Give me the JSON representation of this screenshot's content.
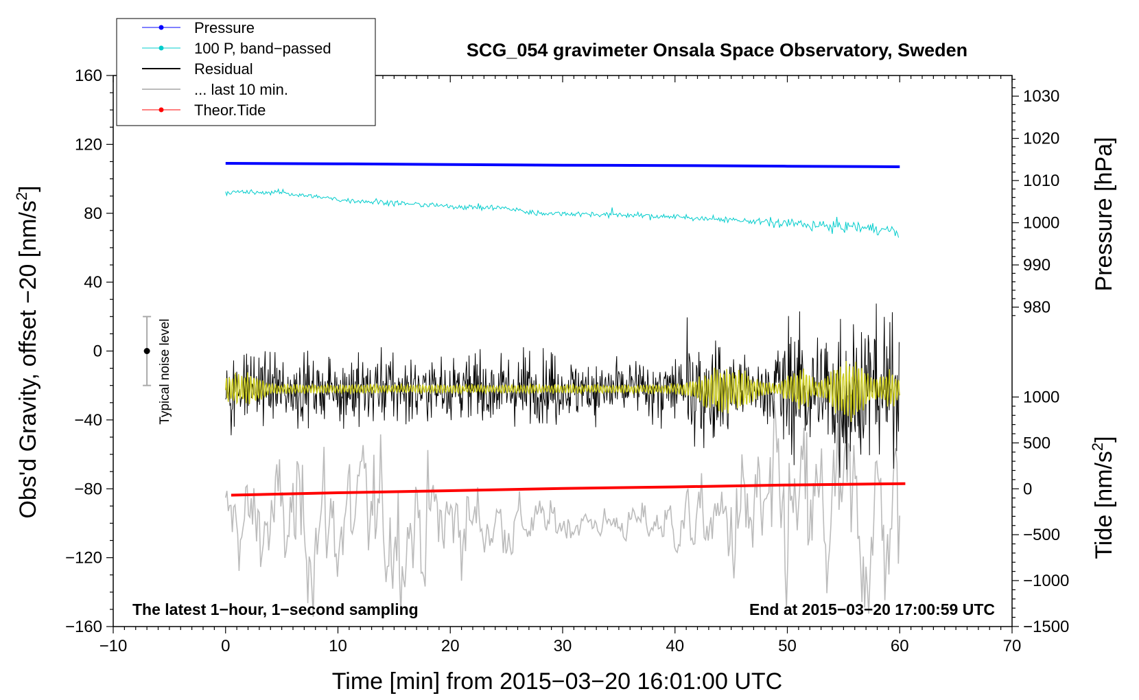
{
  "chart_data": {
    "type": "line",
    "title": "SCG_054 gravimeter Onsala Space Observatory, Sweden",
    "xlabel": "Time [min] from 2015−03−20 16:01:00 UTC",
    "ylabel_main": "Obs'd Gravity, offset −20 [nm/s",
    "ylabel_sup": "2",
    "ylabel_close": "]",
    "xlim": [
      -10,
      70
    ],
    "ylim": [
      -160,
      160
    ],
    "x_ticks": [
      -10,
      0,
      10,
      20,
      30,
      40,
      50,
      60,
      70
    ],
    "x_tick_labels": [
      "−10",
      "0",
      "10",
      "20",
      "30",
      "40",
      "50",
      "60",
      "70"
    ],
    "y_ticks": [
      160,
      120,
      80,
      40,
      0,
      -40,
      -80,
      -120,
      -160
    ],
    "y_tick_labels": [
      "160",
      "120",
      "80",
      "40",
      "0",
      "−40",
      "−80",
      "−120",
      "−160"
    ],
    "pressure_axis": {
      "label": "Pressure [hPa]",
      "ticks": [
        1030,
        1020,
        1010,
        1000,
        990,
        980
      ],
      "tick_labels": [
        "1030",
        "1020",
        "1010",
        "1000",
        "990",
        "980"
      ],
      "gravity_at_1030": 148,
      "nm_per_hpa": 2.45
    },
    "tide_axis": {
      "label_main": "Tide [nm/s",
      "label_sup": "2",
      "label_close": "]",
      "ticks": [
        1000,
        500,
        0,
        -500,
        -1000,
        -1500
      ],
      "tick_labels": [
        "1000",
        "500",
        "0",
        "−500",
        "−1000",
        "−1500"
      ],
      "gravity_at_0": -80,
      "nm_per_unit": 0.0533
    },
    "series": [
      {
        "name": "Pressure",
        "color": "#0000ff",
        "x": [
          0,
          10,
          20,
          30,
          40,
          50,
          60
        ],
        "values": [
          109,
          108.7,
          108.3,
          107.9,
          107.7,
          107.3,
          107
        ]
      },
      {
        "name": "100 P, band−passed",
        "color": "#00cccc",
        "x": [
          0,
          5,
          10,
          15,
          20,
          25,
          27.5,
          30,
          35,
          40,
          45,
          50,
          55,
          58,
          60
        ],
        "values": [
          92,
          92,
          88,
          86,
          84,
          83,
          80,
          80,
          79,
          78,
          76,
          74,
          72,
          71,
          69
        ]
      },
      {
        "name": "Residual",
        "color": "#000000",
        "x": [
          0,
          5,
          10,
          15,
          20,
          25,
          30,
          35,
          40,
          45,
          50,
          55,
          60
        ],
        "values": [
          -22,
          -22,
          -22,
          -22,
          -22,
          -22,
          -22,
          -22,
          -22,
          -22,
          -22,
          -22,
          -22
        ]
      },
      {
        "name": "... last 10 min.",
        "color": "#bbbbbb",
        "x": [
          0,
          10,
          20,
          30,
          40,
          50,
          60
        ],
        "values": [
          -100,
          -100,
          -100,
          -100,
          -100,
          -100,
          -100
        ]
      },
      {
        "name": "Theor.Tide",
        "color": "#ff0000",
        "x": [
          0.5,
          10,
          20,
          30,
          40,
          50,
          60.5
        ],
        "values": [
          -83.7,
          -82.3,
          -81.1,
          -79.8,
          -78.9,
          -77.8,
          -77
        ]
      }
    ],
    "noise_bar": {
      "label": "Typical noise level",
      "x": -7,
      "center": 0,
      "half_range": 20
    },
    "annotations": {
      "bottom_left": "The latest 1−hour, 1−second sampling",
      "bottom_right": "End at 2015−03−20 17:00:59 UTC"
    },
    "legend": {
      "position": "top-left",
      "entries": [
        {
          "label": "Pressure",
          "color": "#0000ff",
          "marker": true,
          "width": 1
        },
        {
          "label": "100 P, band−passed",
          "color": "#00cccc",
          "marker": true,
          "width": 1
        },
        {
          "label": "Residual",
          "color": "#000000",
          "marker": false,
          "width": 2
        },
        {
          "label": "... last 10 min.",
          "color": "#bbbbbb",
          "marker": false,
          "width": 2
        },
        {
          "label": "Theor.Tide",
          "color": "#ff0000",
          "marker": true,
          "width": 1
        }
      ]
    }
  }
}
